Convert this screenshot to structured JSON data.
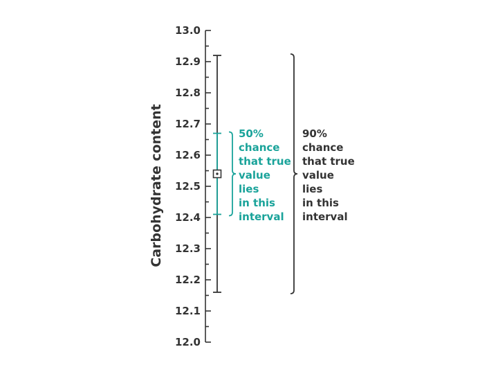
{
  "chart_data": {
    "type": "interval",
    "xlabel": "",
    "ylabel": "Carbohydrate content",
    "ylim": [
      12.0,
      13.0
    ],
    "major_ticks": [
      12.0,
      12.1,
      12.2,
      12.3,
      12.4,
      12.5,
      12.6,
      12.7,
      12.8,
      12.9,
      13.0
    ],
    "tick_labels": [
      "12.0",
      "12.1",
      "12.2",
      "12.3",
      "12.4",
      "12.5",
      "12.6",
      "12.7",
      "12.8",
      "12.9",
      "13.0"
    ],
    "minor_step": 0.05,
    "point_estimate": 12.54,
    "intervals": [
      {
        "confidence": 50,
        "low": 12.41,
        "high": 12.67,
        "color": "#1aa39a",
        "label_lines": [
          "50%",
          "chance",
          "that true",
          "value",
          "lies",
          "in this",
          "interval"
        ]
      },
      {
        "confidence": 90,
        "low": 12.16,
        "high": 12.92,
        "color": "#333333",
        "label_lines": [
          "90%",
          "chance",
          "that true",
          "value",
          "lies",
          "in this",
          "interval"
        ]
      }
    ]
  }
}
